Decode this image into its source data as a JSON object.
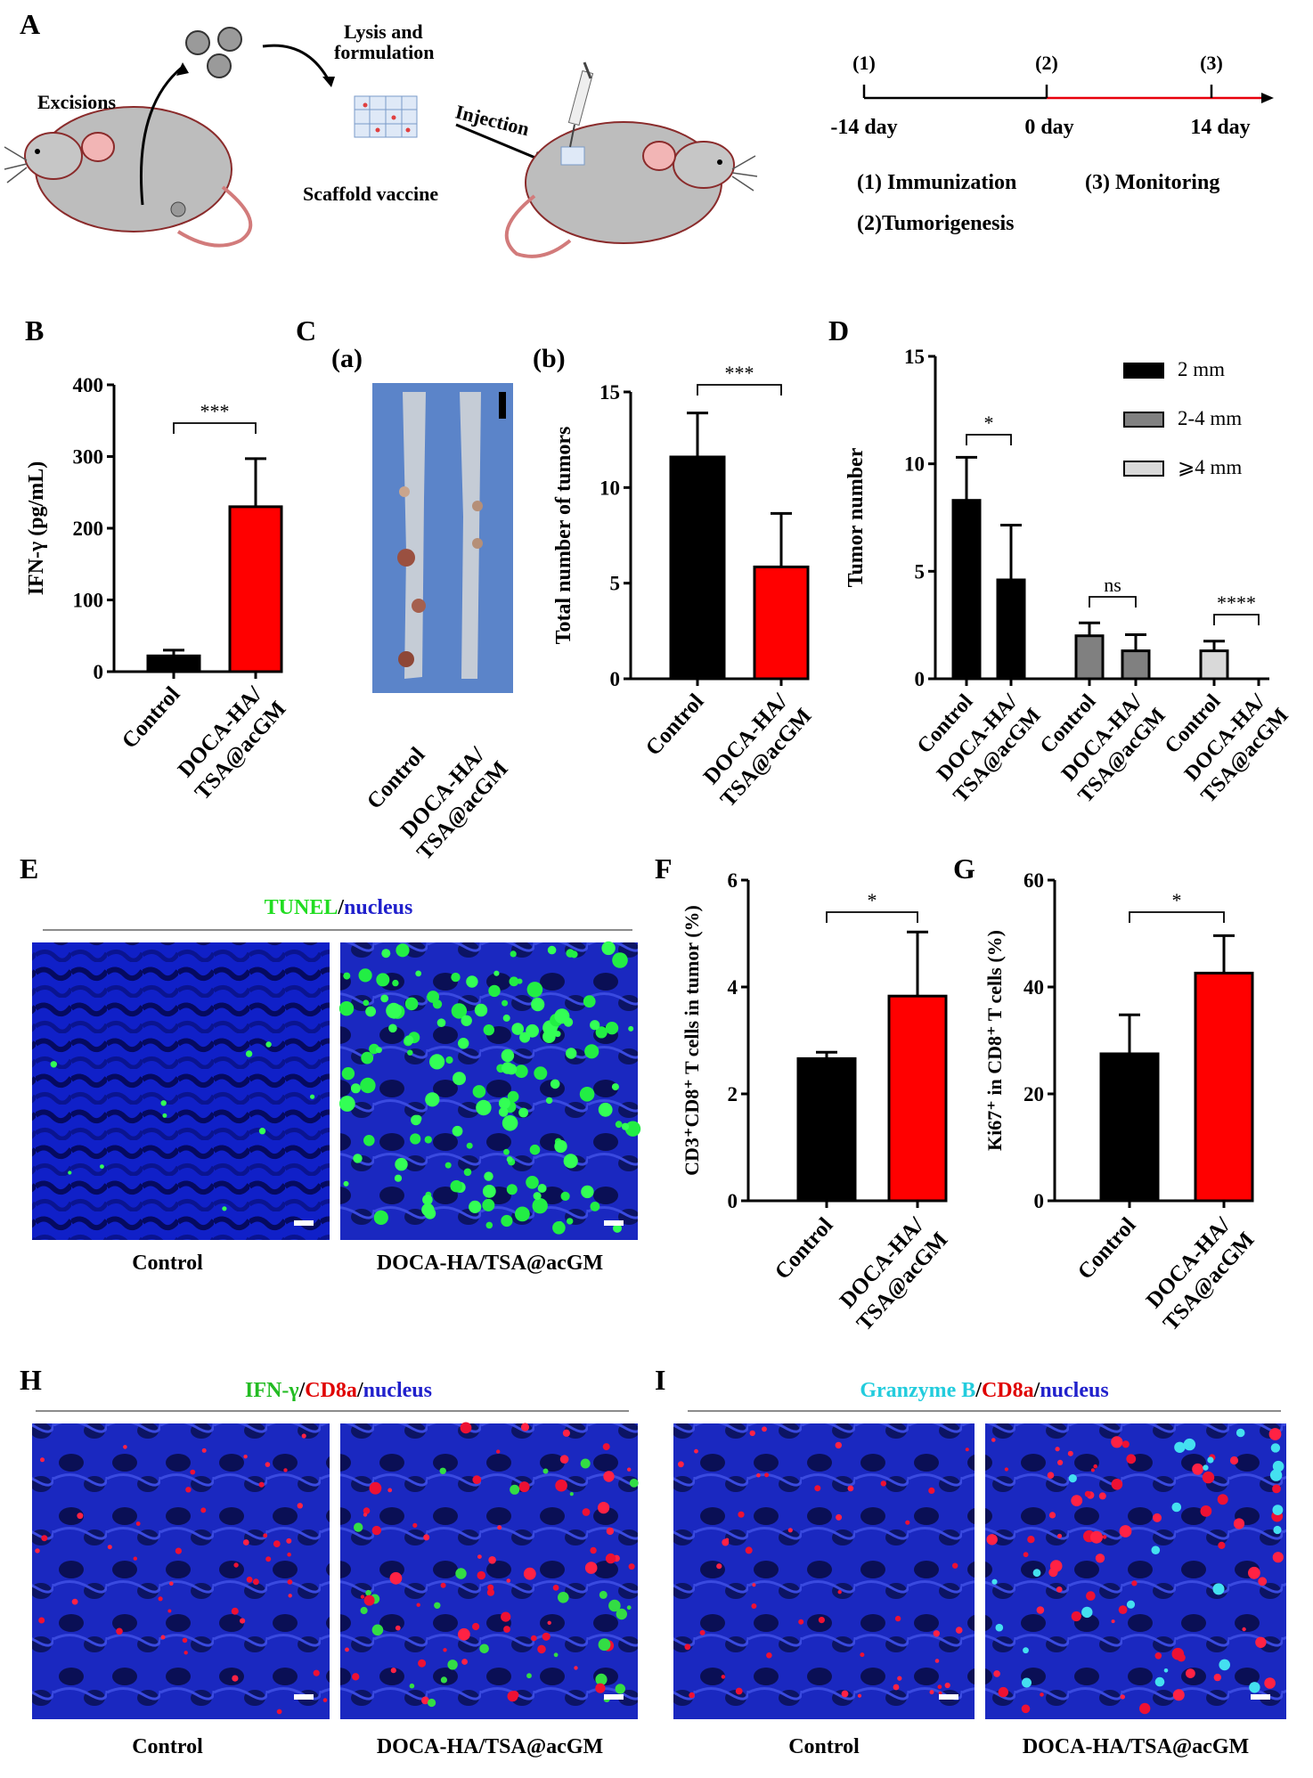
{
  "panels": {
    "A": "A",
    "B": "B",
    "C": "C",
    "C_a": "(a)",
    "C_b": "(b)",
    "D": "D",
    "E": "E",
    "F": "F",
    "G": "G",
    "H": "H",
    "I": "I"
  },
  "schematic": {
    "excisions": "Excisions",
    "lysis_line1": "Lysis and",
    "lysis_line2": "formulation",
    "scaffold_vaccine": "Scaffold vaccine",
    "injection": "Injection"
  },
  "timeline": {
    "points": [
      {
        "num": "(1)",
        "day": "-14 day"
      },
      {
        "num": "(2)",
        "day": "0 day"
      },
      {
        "num": "(3)",
        "day": "14 day"
      }
    ],
    "legend_immunization": "(1) Immunization",
    "legend_monitoring": "(3) Monitoring",
    "legend_tumorigenesis": "(2)Tumorigenesis",
    "colors": {
      "pre": "#000000",
      "post": "#e8000b"
    }
  },
  "colors": {
    "control": "#000000",
    "treated": "#ff0000",
    "gray": "#808080",
    "light": "#d9d9d9"
  },
  "group_labels": {
    "control": "Control",
    "treated_line1": "DOCA-HA/",
    "treated_line2": "TSA@acGM"
  },
  "image_captions": {
    "control": "Control",
    "treated": "DOCA-HA/TSA@acGM"
  },
  "stain_titles": {
    "E": {
      "a": "TUNEL",
      "sep1": "/",
      "b": "nucleus"
    },
    "H": {
      "a": "IFN-γ",
      "sep1": "/",
      "b": "CD8a",
      "sep2": "/",
      "c": "nucleus"
    },
    "I": {
      "a": "Granzyme B",
      "sep1": "/",
      "b": "CD8a",
      "sep2": "/",
      "c": "nucleus"
    }
  },
  "chart_data": [
    {
      "panel": "B",
      "type": "bar",
      "ylabel": "IFN-γ (pg/mL)",
      "yticks": [
        0,
        100,
        200,
        300,
        400
      ],
      "ylim": [
        0,
        400
      ],
      "categories": [
        "Control",
        "DOCA-HA/TSA@acGM"
      ],
      "values": [
        22,
        230
      ],
      "errors": [
        8,
        67
      ],
      "significance": "***"
    },
    {
      "panel": "C(b)",
      "type": "bar",
      "ylabel": "Total number of tumors",
      "yticks": [
        0,
        5,
        10,
        15
      ],
      "ylim": [
        0,
        15
      ],
      "categories": [
        "Control",
        "DOCA-HA/TSA@acGM"
      ],
      "values": [
        11.6,
        5.85
      ],
      "errors": [
        2.3,
        2.8
      ],
      "significance": "***"
    },
    {
      "panel": "D",
      "type": "bar",
      "ylabel": "Tumor number",
      "yticks": [
        0,
        5,
        10,
        15
      ],
      "ylim": [
        0,
        15
      ],
      "legend": [
        "2 mm",
        "2-4 mm",
        "⩾4 mm"
      ],
      "legend_position": "top-right",
      "groups": [
        {
          "size": "2 mm",
          "values": [
            8.3,
            4.6
          ],
          "errors": [
            2.0,
            2.55
          ],
          "significance": "*"
        },
        {
          "size": "2-4 mm",
          "values": [
            2.0,
            1.3
          ],
          "errors": [
            0.6,
            0.75
          ],
          "significance": "ns"
        },
        {
          "size": "⩾4 mm",
          "values": [
            1.3,
            0
          ],
          "errors": [
            0.45,
            0
          ],
          "significance": "****"
        }
      ]
    },
    {
      "panel": "F",
      "type": "bar",
      "ylabel": "CD3⁺CD8⁺ T cells in tumor (%)",
      "yticks": [
        0,
        2,
        4,
        6
      ],
      "ylim": [
        0,
        6
      ],
      "categories": [
        "Control",
        "DOCA-HA/TSA@acGM"
      ],
      "values": [
        2.66,
        3.83
      ],
      "errors": [
        0.12,
        1.2
      ],
      "significance": "*"
    },
    {
      "panel": "G",
      "type": "bar",
      "ylabel": "Ki67⁺ in CD8⁺ T cells (%)",
      "yticks": [
        0,
        20,
        40,
        60
      ],
      "ylim": [
        0,
        60
      ],
      "categories": [
        "Control",
        "DOCA-HA/TSA@acGM"
      ],
      "values": [
        27.5,
        42.6
      ],
      "errors": [
        7.3,
        7.0
      ],
      "significance": "*"
    }
  ]
}
